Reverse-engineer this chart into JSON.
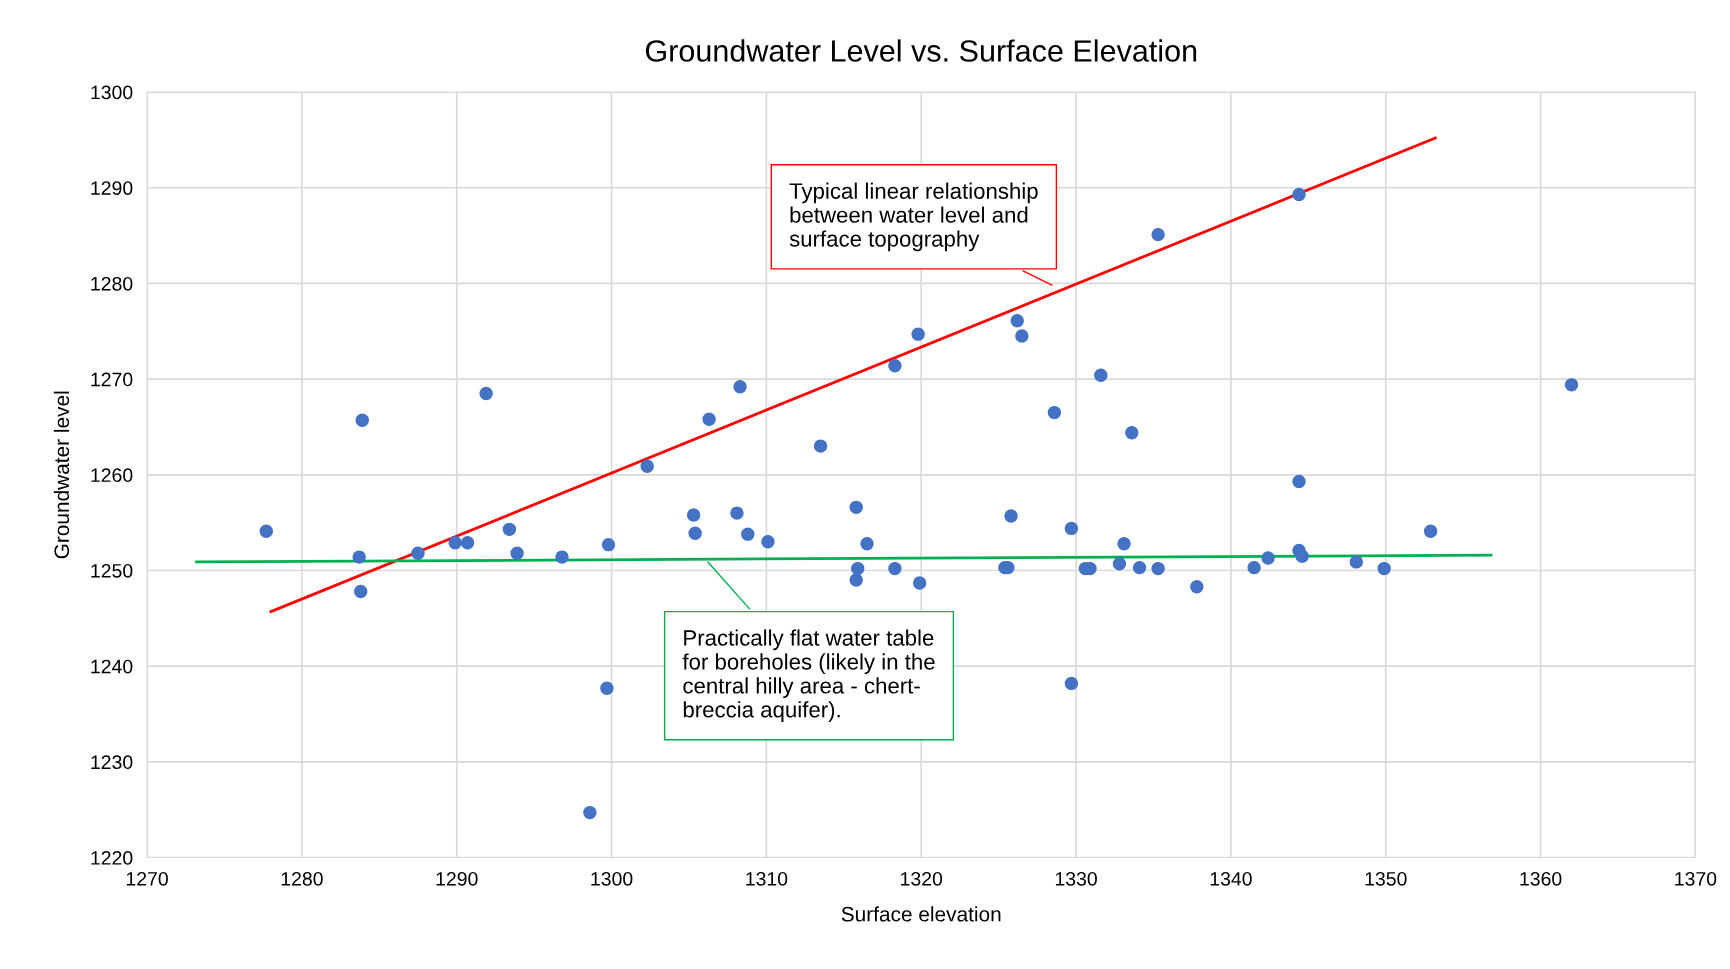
{
  "chart_data": {
    "type": "scatter",
    "title": "Groundwater Level vs. Surface Elevation",
    "xlabel": "Surface elevation",
    "ylabel": "Groundwater level",
    "xlim": [
      1270,
      1370
    ],
    "xticks": [
      1270,
      1280,
      1290,
      1300,
      1310,
      1320,
      1330,
      1340,
      1350,
      1360,
      1370
    ],
    "ylim": [
      1220,
      1300
    ],
    "yticks": [
      1220,
      1230,
      1240,
      1250,
      1260,
      1270,
      1280,
      1290,
      1300
    ],
    "grid": true,
    "legend": false,
    "marker": "circle",
    "series": [
      {
        "color": "#4472c4",
        "x": [
          1277.7,
          1283.9,
          1283.7,
          1283.8,
          1287.5,
          1289.9,
          1290.7,
          1291.9,
          1293.4,
          1293.9,
          1296.8,
          1299.8,
          1299.7,
          1298.6,
          1302.3,
          1305.3,
          1305.4,
          1306.3,
          1308.1,
          1308.3,
          1308.8,
          1310.1,
          1313.5,
          1315.8,
          1315.9,
          1315.8,
          1316.5,
          1318.3,
          1318.3,
          1319.8,
          1319.9,
          1325.4,
          1325.6,
          1325.8,
          1326.2,
          1326.5,
          1328.6,
          1329.7,
          1329.7,
          1330.6,
          1330.9,
          1331.6,
          1332.8,
          1333.1,
          1333.6,
          1334.1,
          1335.3,
          1335.3,
          1337.8,
          1341.5,
          1342.4,
          1344.4,
          1344.4,
          1344.4,
          1344.6,
          1348.1,
          1349.9,
          1352.9,
          1362.0
        ],
        "values": [
          1254.1,
          1265.7,
          1251.4,
          1247.8,
          1251.8,
          1252.9,
          1252.9,
          1268.5,
          1254.3,
          1251.8,
          1251.4,
          1252.7,
          1237.7,
          1224.7,
          1260.9,
          1255.8,
          1253.9,
          1265.8,
          1256.0,
          1269.2,
          1253.8,
          1253.0,
          1263.0,
          1256.6,
          1250.2,
          1249.0,
          1252.8,
          1271.4,
          1250.2,
          1274.7,
          1248.7,
          1250.3,
          1250.3,
          1255.7,
          1276.1,
          1274.5,
          1266.5,
          1254.4,
          1238.2,
          1250.2,
          1250.2,
          1270.4,
          1250.7,
          1252.8,
          1264.4,
          1250.3,
          1250.2,
          1285.1,
          1248.3,
          1250.3,
          1251.3,
          1289.3,
          1259.3,
          1252.1,
          1251.5,
          1250.9,
          1250.2,
          1254.1,
          1269.4
        ]
      },
      {
        "type": "line",
        "color": "#ff0000",
        "marker": "none",
        "x": [
          1278.0,
          1353.2
        ],
        "values": [
          1245.7,
          1295.2
        ]
      },
      {
        "type": "line",
        "color": "#00b050",
        "marker": "none",
        "x": [
          1273.2,
          1356.8
        ],
        "values": [
          1250.9,
          1251.6
        ]
      }
    ],
    "annotations": [
      {
        "text": "Typical linear relationship\nbetween water level and\nsurface topography",
        "x": 1328.6,
        "y": 1279.7
      },
      {
        "text": "Practically flat water table\nfor boreholes (likely in the\ncentral hilly area - chert-\nbreccia aquifer).",
        "x": 1306.1,
        "y": 1251.1
      }
    ]
  }
}
